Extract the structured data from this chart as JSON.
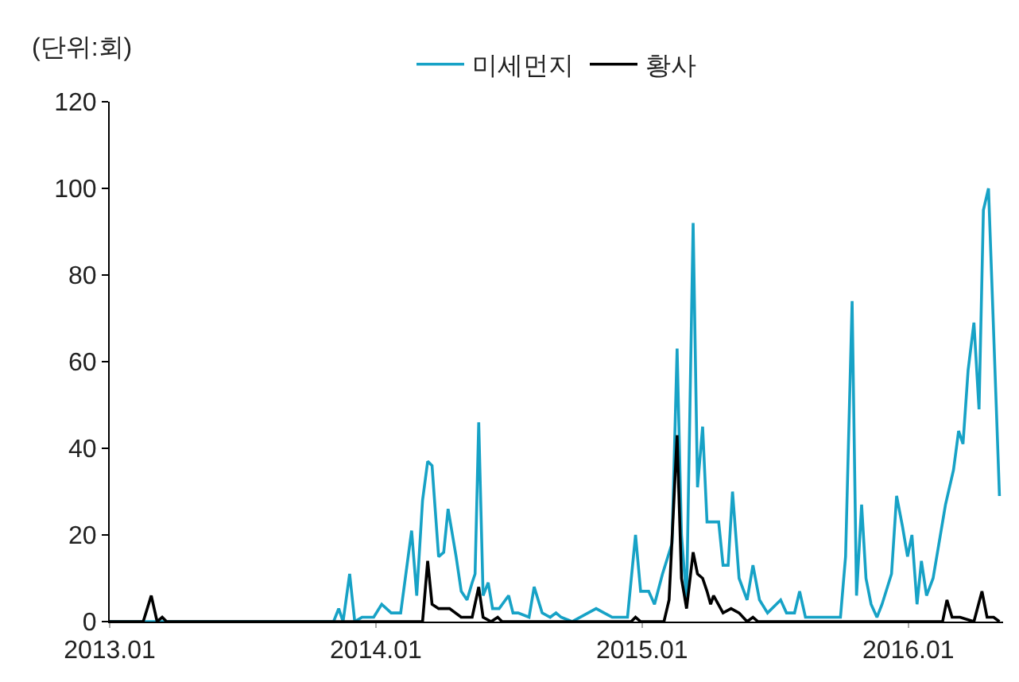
{
  "chart_data": {
    "type": "line",
    "ylabel": "(단위:회)",
    "legend": "top",
    "grid": false,
    "marker": "none",
    "line_style": "solid",
    "xlim": [
      "2013-01-01",
      "2016-05-10"
    ],
    "xticks": [
      {
        "value": "2013-01-01",
        "label": "2013.01"
      },
      {
        "value": "2014-01-01",
        "label": "2014.01"
      },
      {
        "value": "2015-01-01",
        "label": "2015.01"
      },
      {
        "value": "2016-01-01",
        "label": "2016.01"
      }
    ],
    "ylim": [
      0,
      120
    ],
    "yticks": [
      0,
      20,
      40,
      60,
      80,
      100,
      120
    ],
    "series": [
      {
        "name": "미세먼지",
        "color": "#17a2c6",
        "x": [
          "2013-01-01",
          "2013-11-04",
          "2013-11-11",
          "2013-11-17",
          "2013-11-26",
          "2013-12-03",
          "2013-12-13",
          "2013-12-29",
          "2014-01-09",
          "2014-01-22",
          "2014-02-04",
          "2014-02-19",
          "2014-02-26",
          "2014-03-06",
          "2014-03-13",
          "2014-03-19",
          "2014-03-28",
          "2014-04-04",
          "2014-04-10",
          "2014-04-21",
          "2014-04-28",
          "2014-05-06",
          "2014-05-13",
          "2014-05-17",
          "2014-05-22",
          "2014-05-28",
          "2014-06-04",
          "2014-06-10",
          "2014-06-19",
          "2014-07-02",
          "2014-07-08",
          "2014-07-15",
          "2014-07-30",
          "2014-08-06",
          "2014-08-17",
          "2014-08-28",
          "2014-09-05",
          "2014-09-12",
          "2014-09-27",
          "2014-10-30",
          "2014-11-10",
          "2014-11-21",
          "2014-12-12",
          "2014-12-23",
          "2014-12-30",
          "2015-01-10",
          "2015-01-18",
          "2015-01-29",
          "2015-02-11",
          "2015-02-18",
          "2015-02-24",
          "2015-03-03",
          "2015-03-12",
          "2015-03-18",
          "2015-03-25",
          "2015-03-31",
          "2015-04-16",
          "2015-04-22",
          "2015-04-29",
          "2015-05-05",
          "2015-05-14",
          "2015-05-25",
          "2015-06-02",
          "2015-06-11",
          "2015-06-22",
          "2015-07-10",
          "2015-07-18",
          "2015-07-29",
          "2015-08-05",
          "2015-08-13",
          "2015-09-30",
          "2015-10-07",
          "2015-10-16",
          "2015-10-22",
          "2015-10-29",
          "2015-11-04",
          "2015-11-11",
          "2015-11-19",
          "2015-11-26",
          "2015-12-09",
          "2015-12-16",
          "2015-12-24",
          "2015-12-31",
          "2016-01-06",
          "2016-01-13",
          "2016-01-19",
          "2016-01-26",
          "2016-02-04",
          "2016-02-21",
          "2016-03-03",
          "2016-03-10",
          "2016-03-16",
          "2016-03-23",
          "2016-03-31",
          "2016-04-07",
          "2016-04-13",
          "2016-04-20",
          "2016-05-05"
        ],
        "values": [
          0,
          0,
          3,
          0,
          11,
          0,
          1,
          1,
          4,
          2,
          2,
          21,
          6,
          28,
          37,
          36,
          15,
          16,
          26,
          15,
          7,
          5,
          9,
          11,
          46,
          6,
          9,
          3,
          3,
          6,
          2,
          2,
          1,
          8,
          2,
          1,
          2,
          1,
          0,
          3,
          2,
          1,
          1,
          20,
          7,
          7,
          4,
          11,
          18,
          63,
          20,
          5,
          92,
          31,
          45,
          23,
          23,
          13,
          13,
          30,
          10,
          5,
          13,
          5,
          2,
          5,
          2,
          2,
          7,
          1,
          1,
          15,
          74,
          6,
          27,
          10,
          4,
          1,
          4,
          11,
          29,
          22,
          15,
          20,
          4,
          14,
          6,
          10,
          27,
          35,
          44,
          41,
          58,
          69,
          49,
          95,
          100,
          29
        ]
      },
      {
        "name": "황사",
        "color": "#000000",
        "x": [
          "2013-01-01",
          "2013-02-16",
          "2013-02-27",
          "2013-03-07",
          "2013-03-14",
          "2013-03-20",
          "2014-03-06",
          "2014-03-13",
          "2014-03-19",
          "2014-03-28",
          "2014-04-12",
          "2014-04-28",
          "2014-05-13",
          "2014-05-22",
          "2014-05-28",
          "2014-06-08",
          "2014-06-17",
          "2014-06-23",
          "2014-12-17",
          "2014-12-23",
          "2014-12-30",
          "2015-01-31",
          "2015-02-07",
          "2015-02-18",
          "2015-02-24",
          "2015-03-03",
          "2015-03-12",
          "2015-03-18",
          "2015-03-25",
          "2015-03-31",
          "2015-04-05",
          "2015-04-09",
          "2015-04-22",
          "2015-05-03",
          "2015-05-14",
          "2015-05-25",
          "2015-06-02",
          "2015-06-09",
          "2016-02-17",
          "2016-02-23",
          "2016-03-01",
          "2016-03-12",
          "2016-03-31",
          "2016-04-11",
          "2016-04-18",
          "2016-04-27",
          "2016-05-05"
        ],
        "values": [
          0,
          0,
          6,
          0,
          1,
          0,
          0,
          14,
          4,
          3,
          3,
          1,
          1,
          8,
          1,
          0,
          1,
          0,
          0,
          1,
          0,
          0,
          5,
          43,
          10,
          3,
          16,
          11,
          10,
          7,
          4,
          6,
          2,
          3,
          2,
          0,
          1,
          0,
          0,
          5,
          1,
          1,
          0,
          7,
          1,
          1,
          0
        ]
      }
    ]
  }
}
